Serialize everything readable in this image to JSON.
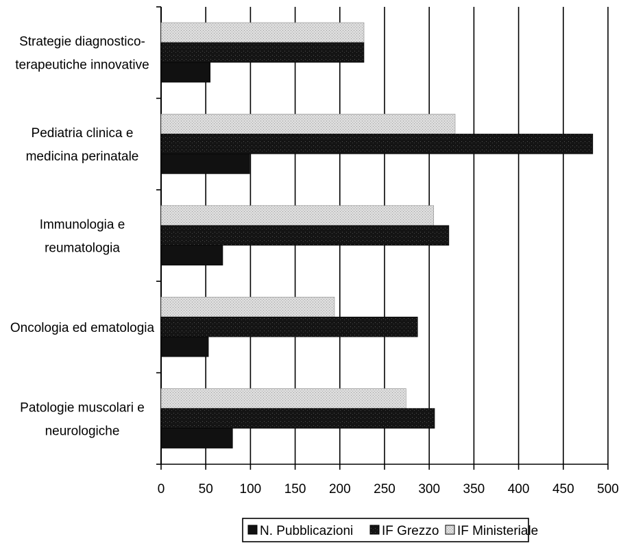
{
  "chart_data": {
    "type": "bar",
    "orientation": "horizontal",
    "title": "",
    "xlabel": "",
    "ylabel": "",
    "xlim": [
      0,
      500
    ],
    "x_ticks": [
      "0",
      "50",
      "100",
      "150",
      "200",
      "250",
      "300",
      "350",
      "400",
      "450",
      "500"
    ],
    "categories": [
      [
        "Strategie diagnostico-",
        "terapeutiche innovative"
      ],
      [
        "Pediatria clinica e",
        "medicina perinatale"
      ],
      [
        "Immunologia e",
        "reumatologia"
      ],
      [
        "Oncologia ed ematologia"
      ],
      [
        "Patologie muscolari e",
        "neurologiche"
      ]
    ],
    "series": [
      {
        "name": "N. Pubblicazioni",
        "values": [
          55,
          99,
          69,
          53,
          80
        ],
        "color": "#111111",
        "pattern": "solid"
      },
      {
        "name": "IF Grezzo",
        "values": [
          227,
          483,
          322,
          287,
          306
        ],
        "color": "#141414",
        "pattern": "dark-speckle"
      },
      {
        "name": "IF Ministeriale",
        "values": [
          227,
          329,
          305,
          194,
          274
        ],
        "color": "#d8d8d8",
        "pattern": "light-speckle"
      }
    ],
    "grid": "vertical",
    "legend_position": "bottom"
  }
}
